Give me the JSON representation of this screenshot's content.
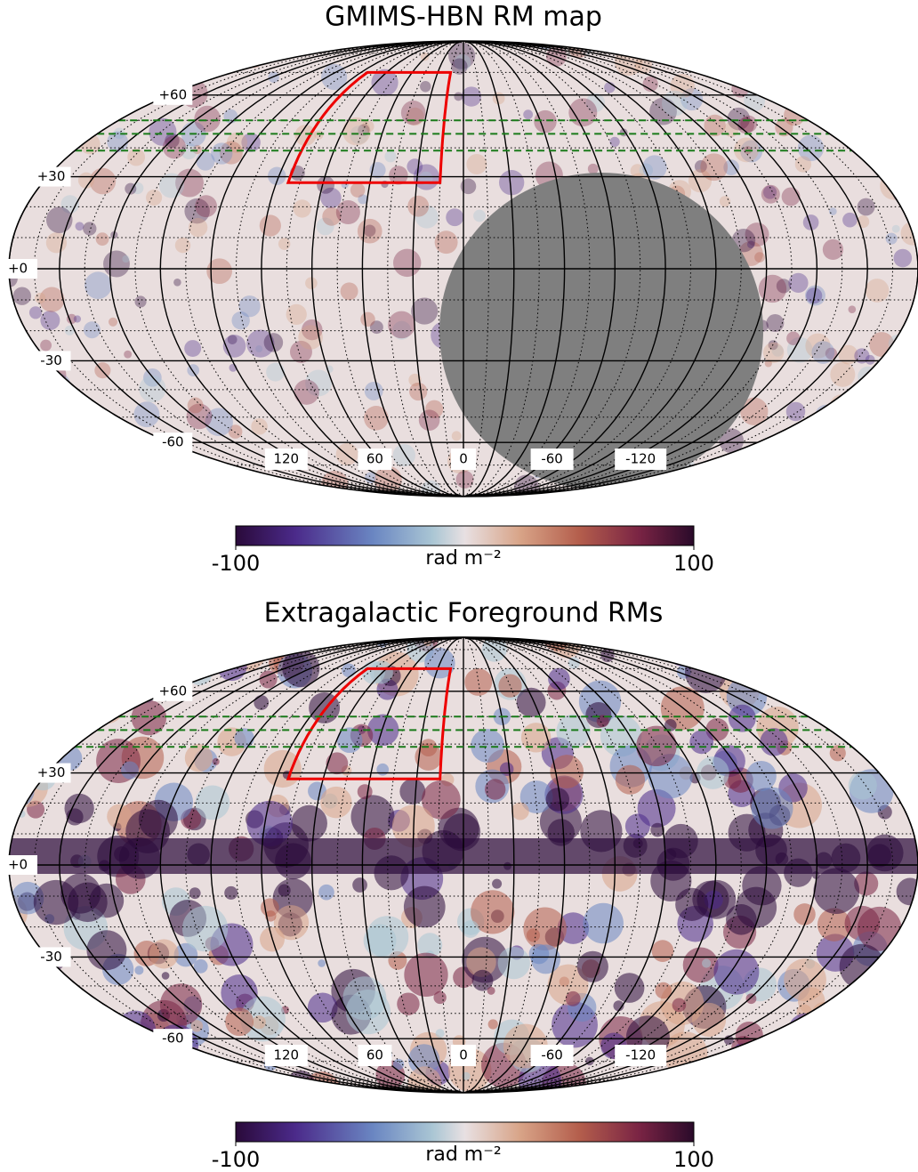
{
  "maps": [
    {
      "title": "GMIMS-HBN RM map",
      "lat_labels": [
        {
          "value": 60,
          "label": "+60"
        },
        {
          "value": 30,
          "label": "+30"
        },
        {
          "value": 0,
          "label": "+0"
        },
        -30,
        -60
      ],
      "lon_labels": [
        120,
        60,
        0,
        -60,
        -120
      ],
      "colorbar": {
        "range": [
          -100,
          100
        ],
        "label": "rad m⁻²"
      }
    },
    {
      "title": "Extragalactic Foreground  RMs",
      "lat_labels": [
        {
          "value": 60,
          "label": "+60"
        },
        {
          "value": 30,
          "label": "+30"
        },
        {
          "value": 0,
          "label": "+0"
        },
        -30,
        -60
      ],
      "lon_labels": [
        120,
        60,
        0,
        -60,
        -120
      ],
      "colorbar": {
        "range": [
          -100,
          100
        ],
        "label": "rad m⁻²"
      }
    }
  ]
}
